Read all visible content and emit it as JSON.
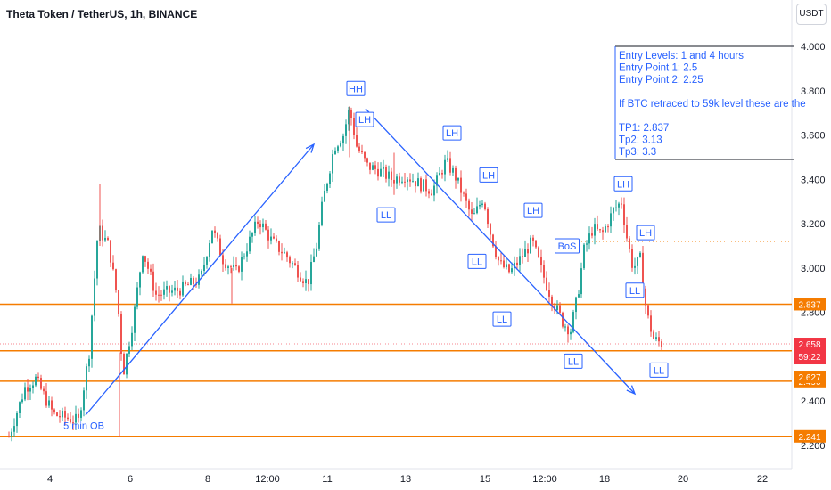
{
  "header": {
    "title": "Theta Token / TetherUS, 1h, BINANCE",
    "currency_button": "USDT"
  },
  "chart_data": {
    "type": "candlestick",
    "symbol": "Theta Token / TetherUS",
    "interval": "1h",
    "exchange": "BINANCE",
    "ylim": [
      2.2,
      4.0
    ],
    "y_ticks": [
      {
        "value": 4.0,
        "label": "4.000"
      },
      {
        "value": 3.8,
        "label": "3.800"
      },
      {
        "value": 3.6,
        "label": "3.600"
      },
      {
        "value": 3.4,
        "label": "3.400"
      },
      {
        "value": 3.2,
        "label": "3.200"
      },
      {
        "value": 3.0,
        "label": "3.000"
      },
      {
        "value": 2.8,
        "label": "2.800"
      },
      {
        "value": 2.4,
        "label": "2.400"
      },
      {
        "value": 2.2,
        "label": "2.200"
      }
    ],
    "x_ticks": [
      {
        "label": "4",
        "t": 56
      },
      {
        "label": "6",
        "t": 146
      },
      {
        "label": "8",
        "t": 233
      },
      {
        "label": "12:00",
        "t": 300
      },
      {
        "label": "11",
        "t": 367
      },
      {
        "label": "13",
        "t": 455
      },
      {
        "label": "15",
        "t": 544
      },
      {
        "label": "12:00",
        "t": 611
      },
      {
        "label": "18",
        "t": 678
      },
      {
        "label": "20",
        "t": 766
      },
      {
        "label": "22",
        "t": 855
      }
    ],
    "trend_path": [
      [
        10,
        2.24
      ],
      [
        28,
        2.46
      ],
      [
        40,
        2.5
      ],
      [
        60,
        2.34
      ],
      [
        88,
        2.31
      ],
      [
        100,
        2.62
      ],
      [
        110,
        3.18
      ],
      [
        122,
        3.1
      ],
      [
        132,
        2.85
      ],
      [
        138,
        2.52
      ],
      [
        150,
        2.78
      ],
      [
        160,
        3.08
      ],
      [
        175,
        2.88
      ],
      [
        200,
        2.9
      ],
      [
        225,
        2.95
      ],
      [
        238,
        3.18
      ],
      [
        250,
        3.04
      ],
      [
        265,
        2.98
      ],
      [
        290,
        3.22
      ],
      [
        305,
        3.12
      ],
      [
        320,
        3.06
      ],
      [
        345,
        2.93
      ],
      [
        355,
        3.1
      ],
      [
        362,
        3.3
      ],
      [
        375,
        3.55
      ],
      [
        385,
        3.6
      ],
      [
        392,
        3.72
      ],
      [
        400,
        3.55
      ],
      [
        412,
        3.46
      ],
      [
        425,
        3.44
      ],
      [
        440,
        3.4
      ],
      [
        455,
        3.42
      ],
      [
        470,
        3.38
      ],
      [
        485,
        3.35
      ],
      [
        500,
        3.48
      ],
      [
        510,
        3.42
      ],
      [
        520,
        3.32
      ],
      [
        530,
        3.22
      ],
      [
        542,
        3.32
      ],
      [
        550,
        3.16
      ],
      [
        560,
        3.02
      ],
      [
        572,
        2.98
      ],
      [
        585,
        3.05
      ],
      [
        597,
        3.12
      ],
      [
        608,
        2.98
      ],
      [
        620,
        2.85
      ],
      [
        632,
        2.75
      ],
      [
        640,
        2.72
      ],
      [
        648,
        2.88
      ],
      [
        655,
        3.08
      ],
      [
        665,
        3.18
      ],
      [
        675,
        3.15
      ],
      [
        688,
        3.26
      ],
      [
        697,
        3.3
      ],
      [
        703,
        3.14
      ],
      [
        710,
        3.0
      ],
      [
        718,
        3.04
      ],
      [
        725,
        2.8
      ],
      [
        733,
        2.68
      ],
      [
        742,
        2.66
      ]
    ],
    "current_price": {
      "label": "2.658",
      "countdown": "59:22"
    },
    "price_markers": [
      {
        "label": "2.837",
        "value": 2.837,
        "color": "#f57c00"
      },
      {
        "label": "2.627",
        "value": 2.627,
        "color": "#f57c00"
      },
      {
        "label": "2.490",
        "value": 2.49,
        "color": "#f57c00"
      },
      {
        "label": "2.241",
        "value": 2.241,
        "color": "#f57c00"
      }
    ],
    "resistance_level": 3.12,
    "annotations": [
      {
        "text": "HH",
        "t": 399,
        "y": 3.81
      },
      {
        "text": "LH",
        "t": 409,
        "y": 3.67
      },
      {
        "text": "LL",
        "t": 433,
        "y": 3.24
      },
      {
        "text": "LH",
        "t": 507,
        "y": 3.61
      },
      {
        "text": "LH",
        "t": 548,
        "y": 3.42
      },
      {
        "text": "LH",
        "t": 598,
        "y": 3.26
      },
      {
        "text": "BoS",
        "t": 636,
        "y": 3.1
      },
      {
        "text": "LL",
        "t": 535,
        "y": 3.03
      },
      {
        "text": "LL",
        "t": 563,
        "y": 2.77
      },
      {
        "text": "LL",
        "t": 643,
        "y": 2.58
      },
      {
        "text": "LH",
        "t": 699,
        "y": 3.38
      },
      {
        "text": "LH",
        "t": 724,
        "y": 3.16
      },
      {
        "text": "LL",
        "t": 712,
        "y": 2.9
      },
      {
        "text": "LL",
        "t": 739,
        "y": 2.54
      },
      {
        "text": "5 min OB",
        "t": 94,
        "y": 2.29
      }
    ],
    "note_lines": [
      "Entry Levels: 1 and 4 hours",
      "Entry Point 1: 2.5",
      "Entry Point 2: 2.25",
      "",
      "If BTC retraced to 59k level these are the",
      "",
      "TP1: 2.837",
      "Tp2: 3.13",
      "Tp3: 3.3"
    ]
  },
  "colors": {
    "up": "#26a69a",
    "down": "#ef5350",
    "drawing": "#2962ff",
    "level": "#f57c00",
    "current": "#f23645"
  }
}
